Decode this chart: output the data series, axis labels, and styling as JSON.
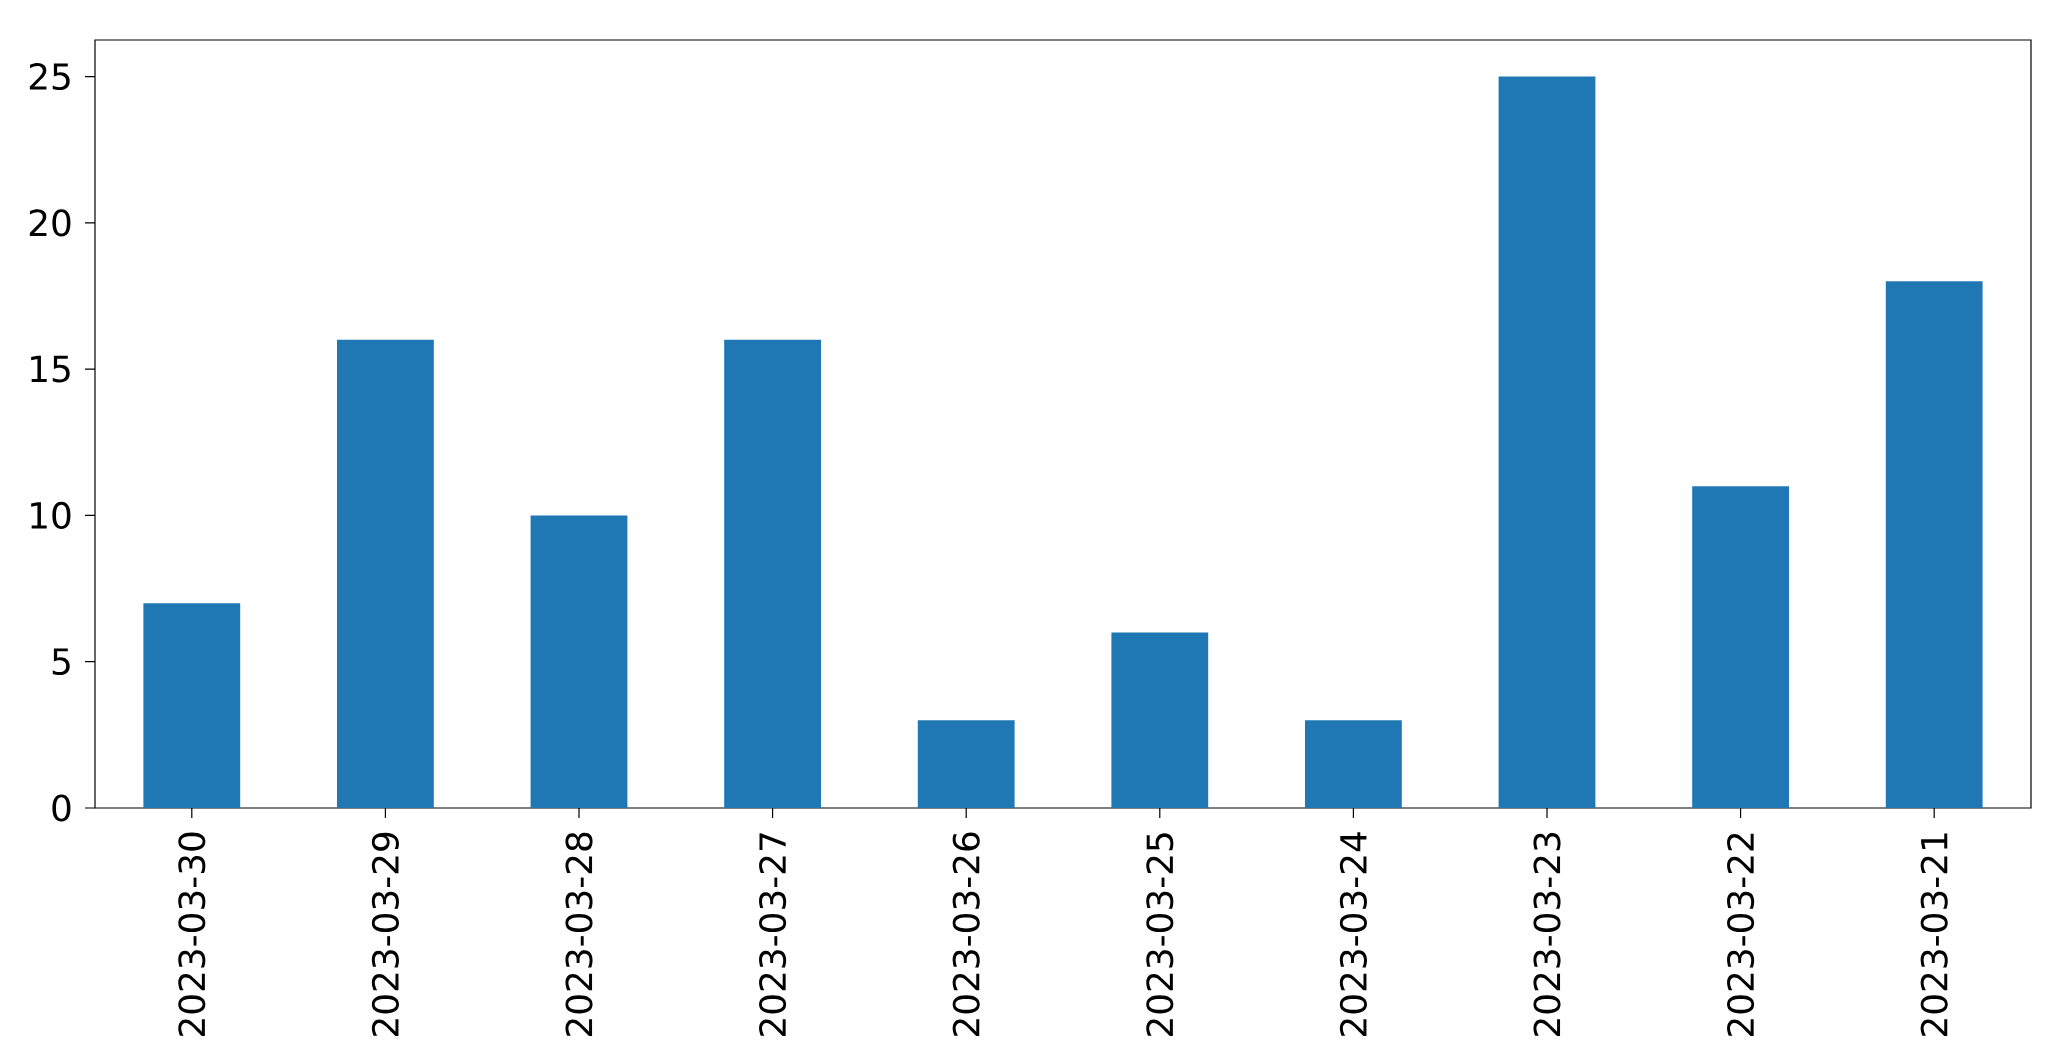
{
  "chart_data": {
    "type": "bar",
    "categories": [
      "2023-03-30",
      "2023-03-29",
      "2023-03-28",
      "2023-03-27",
      "2023-03-26",
      "2023-03-25",
      "2023-03-24",
      "2023-03-23",
      "2023-03-22",
      "2023-03-21"
    ],
    "values": [
      7,
      16,
      10,
      16,
      3,
      6,
      3,
      25,
      11,
      18
    ],
    "color": "#1f77b4",
    "ylim": [
      0,
      26.25
    ],
    "yticks": [
      0,
      5,
      10,
      15,
      20,
      25
    ]
  }
}
